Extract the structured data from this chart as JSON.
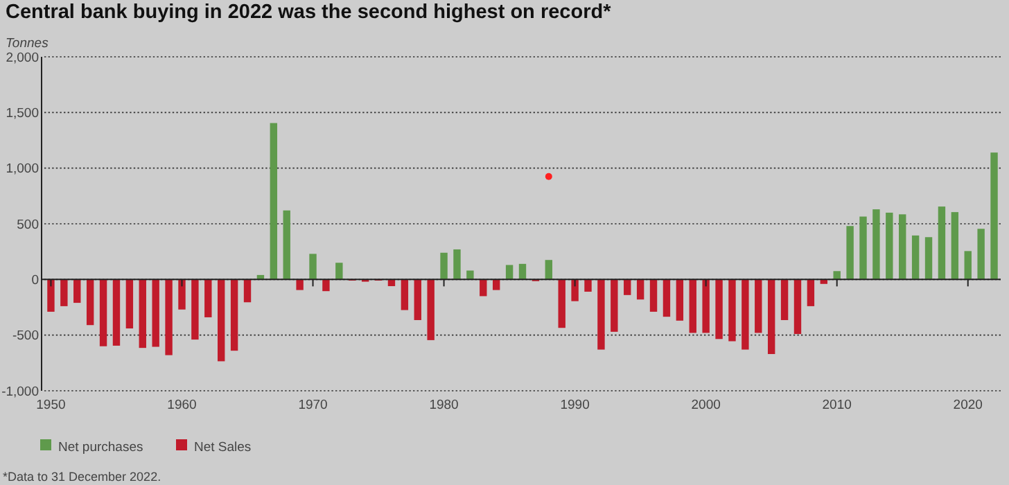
{
  "chart_data": {
    "type": "bar",
    "title": "Central bank buying in 2022 was the second highest on record*",
    "ylabel": "Tonnes",
    "x": [
      1950,
      1951,
      1952,
      1953,
      1954,
      1955,
      1956,
      1957,
      1958,
      1959,
      1960,
      1961,
      1962,
      1963,
      1964,
      1965,
      1966,
      1967,
      1968,
      1969,
      1970,
      1971,
      1972,
      1973,
      1974,
      1975,
      1976,
      1977,
      1978,
      1979,
      1980,
      1981,
      1982,
      1983,
      1984,
      1985,
      1986,
      1987,
      1988,
      1989,
      1990,
      1991,
      1992,
      1993,
      1994,
      1995,
      1996,
      1997,
      1998,
      1999,
      2000,
      2001,
      2002,
      2003,
      2004,
      2005,
      2006,
      2007,
      2008,
      2009,
      2010,
      2011,
      2012,
      2013,
      2014,
      2015,
      2016,
      2017,
      2018,
      2019,
      2020,
      2021,
      2022
    ],
    "series": [
      {
        "name": "Net purchases",
        "color": "#5f9a4c",
        "values": [
          null,
          null,
          null,
          null,
          null,
          null,
          null,
          null,
          null,
          null,
          null,
          null,
          null,
          null,
          null,
          null,
          40,
          1405,
          620,
          null,
          230,
          null,
          150,
          null,
          null,
          null,
          null,
          null,
          null,
          null,
          240,
          270,
          80,
          null,
          null,
          130,
          140,
          null,
          175,
          null,
          null,
          null,
          null,
          null,
          null,
          null,
          null,
          null,
          null,
          null,
          null,
          null,
          null,
          null,
          null,
          null,
          null,
          null,
          null,
          null,
          75,
          480,
          565,
          630,
          600,
          585,
          395,
          380,
          655,
          605,
          255,
          455,
          1140
        ]
      },
      {
        "name": "Net Sales",
        "color": "#c11b2b",
        "values": [
          -290,
          -240,
          -210,
          -410,
          -600,
          -595,
          -440,
          -615,
          -605,
          -680,
          -270,
          -540,
          -340,
          -735,
          -640,
          -205,
          null,
          null,
          null,
          -95,
          null,
          -105,
          null,
          -10,
          -20,
          -10,
          -60,
          -275,
          -365,
          -545,
          null,
          null,
          null,
          -150,
          -95,
          null,
          null,
          -15,
          null,
          -435,
          -195,
          -110,
          -630,
          -470,
          -140,
          -180,
          -290,
          -335,
          -370,
          -480,
          -480,
          -535,
          -555,
          -630,
          -480,
          -670,
          -365,
          -490,
          -240,
          -40,
          null,
          null,
          null,
          null,
          null,
          null,
          null,
          null,
          null,
          null,
          null,
          null,
          null
        ]
      },
      {
        "type": "scatter",
        "color": "#ff2020",
        "marker": "circle",
        "x": [
          1988
        ],
        "values": [
          925
        ]
      }
    ],
    "xlim": [
      1949.5,
      2022.5
    ],
    "xticks": [
      1950,
      1960,
      1970,
      1980,
      1990,
      2000,
      2010,
      2020
    ],
    "ylim": [
      -1000,
      2000
    ],
    "yticks": [
      {
        "value": -1000,
        "label": "-1,000"
      },
      {
        "value": -500,
        "label": "-500"
      },
      0,
      500,
      {
        "value": 1000,
        "label": "1,000"
      },
      {
        "value": 1500,
        "label": "1,500"
      },
      {
        "value": 2000,
        "label": "2,000"
      }
    ],
    "grid": "y",
    "legend": "bottom left",
    "annotations": [
      "*Data to 31 December 2022."
    ]
  }
}
